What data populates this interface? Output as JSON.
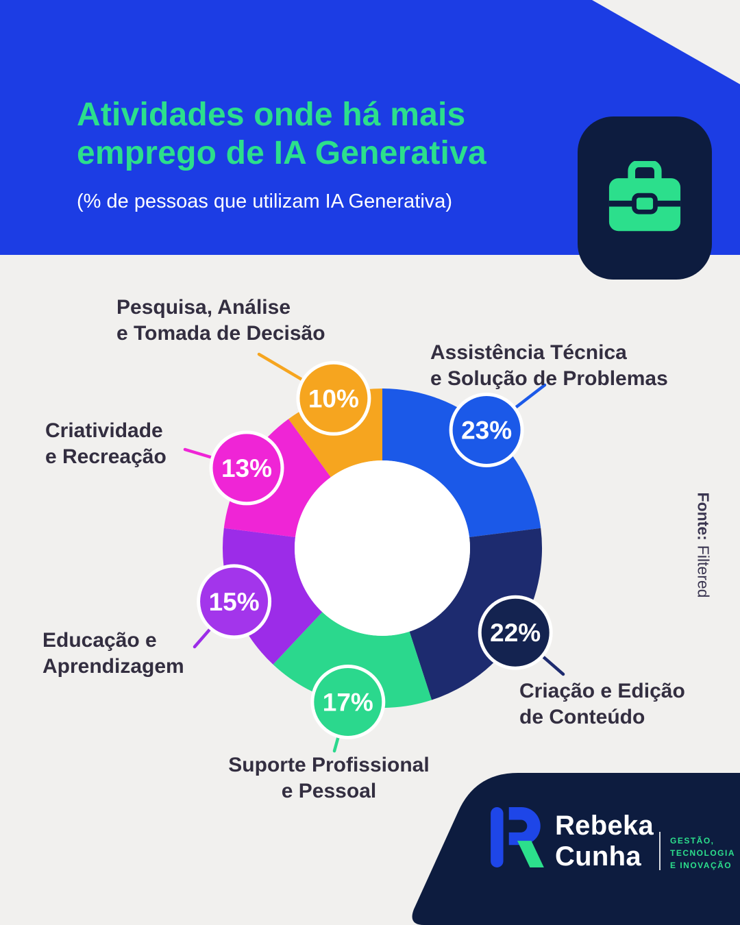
{
  "header": {
    "title": "Atividades onde há mais\nemprego de IA Generativa",
    "subtitle": "(% de pessoas que utilizam IA Generativa)"
  },
  "icons": {
    "header_badge": "briefcase-icon"
  },
  "source": {
    "label": "Fonte:",
    "value": "Filtered"
  },
  "footer": {
    "brand_first_name": "Rebeka",
    "brand_last_name": "Cunha",
    "tagline": "GESTÃO,\nTECNOLOGIA\nE INOVAÇÃO"
  },
  "colors": {
    "header_background": "#1C3DE4",
    "accent_green": "#2CDF8C",
    "navy": "#0D1C3F",
    "page_background": "#F1F0EE",
    "label_text": "#332E40"
  },
  "chart_data": {
    "type": "pie",
    "variant": "donut",
    "title": "Atividades onde há mais emprego de IA Generativa",
    "subtitle": "(% de pessoas que utilizam IA Generativa)",
    "unit": "%",
    "total": 100,
    "slices": [
      {
        "label": "Assistência Técnica\ne Solução de Problemas",
        "value": 23,
        "color": "#1B59E8",
        "badge_color": "#1B59E8"
      },
      {
        "label": "Criação e Edição\nde Conteúdo",
        "value": 22,
        "color": "#1D2B6F",
        "badge_color": "#142350"
      },
      {
        "label": "Suporte Profissional\ne Pessoal",
        "value": 17,
        "color": "#2BD88D",
        "badge_color": "#2BD88D"
      },
      {
        "label": "Educação e\nAprendizagem",
        "value": 15,
        "color": "#9C2CE8",
        "badge_color": "#A335EB"
      },
      {
        "label": "Criatividade\ne Recreação",
        "value": 13,
        "color": "#EF25D6",
        "badge_color": "#EF25D6"
      },
      {
        "label": "Pesquisa, Análise\ne Tomada de Decisão",
        "value": 10,
        "color": "#F6A51F",
        "badge_color": "#F6A51F"
      }
    ]
  }
}
